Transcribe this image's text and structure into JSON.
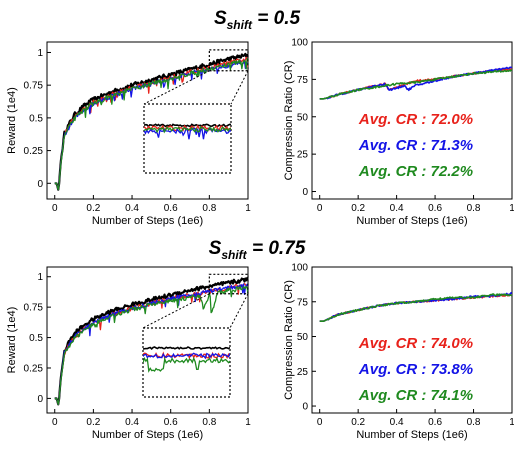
{
  "chart_data": [
    {
      "title_main": "S",
      "title_sub": "shift",
      "title_value": "= 0.5",
      "panels": [
        {
          "type": "line",
          "xlabel": "Number of Steps (1e6)",
          "ylabel": "Reward (1e4)",
          "xlim": [
            -0.04,
            1.0
          ],
          "ylim": [
            -0.12,
            1.08
          ],
          "xticks": [
            "0",
            "0.2",
            "0.4",
            "0.6",
            "0.8",
            "1"
          ],
          "yticks": [
            "0",
            "0.25",
            "0.5",
            "0.75",
            "1"
          ],
          "inset_zoom": true,
          "series": [
            {
              "color": "#000000",
              "x": [
                0,
                0.01,
                0.02,
                0.03,
                0.05,
                0.07,
                0.1,
                0.15,
                0.2,
                0.3,
                0.4,
                0.5,
                0.6,
                0.7,
                0.8,
                0.9,
                1.0
              ],
              "y": [
                0,
                0.0,
                -0.06,
                0.15,
                0.38,
                0.44,
                0.52,
                0.59,
                0.64,
                0.7,
                0.75,
                0.79,
                0.83,
                0.87,
                0.91,
                0.95,
                0.98
              ]
            },
            {
              "color": "#e8221b",
              "x": [
                0,
                0.01,
                0.02,
                0.03,
                0.05,
                0.07,
                0.1,
                0.15,
                0.2,
                0.3,
                0.4,
                0.5,
                0.6,
                0.7,
                0.8,
                0.9,
                1.0
              ],
              "y": [
                0,
                0.0,
                -0.06,
                0.14,
                0.37,
                0.43,
                0.5,
                0.57,
                0.62,
                0.68,
                0.73,
                0.77,
                0.81,
                0.85,
                0.88,
                0.92,
                0.95
              ]
            },
            {
              "color": "#1414e6",
              "x": [
                0,
                0.01,
                0.02,
                0.03,
                0.05,
                0.07,
                0.1,
                0.15,
                0.2,
                0.3,
                0.4,
                0.5,
                0.6,
                0.7,
                0.8,
                0.9,
                1.0
              ],
              "y": [
                0,
                0.0,
                -0.06,
                0.14,
                0.36,
                0.42,
                0.49,
                0.56,
                0.61,
                0.67,
                0.72,
                0.76,
                0.8,
                0.84,
                0.87,
                0.9,
                0.93
              ]
            },
            {
              "color": "#1f8a1f",
              "x": [
                0,
                0.01,
                0.02,
                0.03,
                0.05,
                0.07,
                0.1,
                0.15,
                0.2,
                0.3,
                0.4,
                0.5,
                0.6,
                0.7,
                0.8,
                0.9,
                1.0
              ],
              "y": [
                0,
                0.0,
                -0.06,
                0.13,
                0.36,
                0.42,
                0.49,
                0.56,
                0.61,
                0.67,
                0.72,
                0.76,
                0.8,
                0.84,
                0.87,
                0.91,
                0.94
              ]
            }
          ]
        },
        {
          "type": "line",
          "xlabel": "Number of Steps (1e6)",
          "ylabel": "Compression Ratio (CR)",
          "xlim": [
            -0.04,
            1.0
          ],
          "ylim": [
            -5,
            100
          ],
          "xticks": [
            "0",
            "0.2",
            "0.4",
            "0.6",
            "0.8",
            "1"
          ],
          "yticks": [
            "0",
            "25",
            "50",
            "75",
            "100"
          ],
          "series": [
            {
              "name": "Avg. CR : 72.0%",
              "color": "#e8221b",
              "x": [
                0,
                0.02,
                0.05,
                0.1,
                0.2,
                0.3,
                0.34,
                0.36,
                0.4,
                0.45,
                0.5,
                0.6,
                0.7,
                0.8,
                0.9,
                1.0
              ],
              "y": [
                62,
                62,
                63,
                65,
                68,
                71,
                72,
                68,
                70,
                72,
                74,
                75,
                77,
                79,
                81,
                82
              ]
            },
            {
              "name": "Avg. CR : 71.3%",
              "color": "#1414e6",
              "x": [
                0,
                0.02,
                0.05,
                0.1,
                0.2,
                0.3,
                0.34,
                0.36,
                0.4,
                0.44,
                0.46,
                0.5,
                0.6,
                0.7,
                0.8,
                0.9,
                1.0
              ],
              "y": [
                62,
                62,
                63,
                65,
                68,
                71,
                72,
                68,
                69,
                71,
                68,
                71,
                74,
                77,
                79,
                81,
                83
              ]
            },
            {
              "name": "Avg. CR : 72.2%",
              "color": "#1f8a1f",
              "x": [
                0,
                0.02,
                0.05,
                0.1,
                0.2,
                0.3,
                0.35,
                0.4,
                0.5,
                0.6,
                0.7,
                0.8,
                0.9,
                1.0
              ],
              "y": [
                62,
                62,
                63,
                65,
                68,
                70,
                71,
                72,
                73,
                75,
                77,
                79,
                80,
                81
              ]
            }
          ]
        }
      ]
    },
    {
      "title_main": "S",
      "title_sub": "shift",
      "title_value": "= 0.75",
      "panels": [
        {
          "type": "line",
          "xlabel": "Number of Steps (1e6)",
          "ylabel": "Reward (1e4)",
          "xlim": [
            -0.04,
            1.0
          ],
          "ylim": [
            -0.12,
            1.08
          ],
          "xticks": [
            "0",
            "0.2",
            "0.4",
            "0.6",
            "0.8",
            "1"
          ],
          "yticks": [
            "0",
            "0.25",
            "0.5",
            "0.75",
            "1"
          ],
          "inset_zoom": true,
          "series": [
            {
              "color": "#000000",
              "x": [
                0,
                0.01,
                0.02,
                0.03,
                0.05,
                0.07,
                0.1,
                0.15,
                0.2,
                0.3,
                0.4,
                0.5,
                0.6,
                0.7,
                0.8,
                0.9,
                1.0
              ],
              "y": [
                0,
                0.0,
                -0.06,
                0.15,
                0.39,
                0.45,
                0.53,
                0.6,
                0.65,
                0.72,
                0.77,
                0.81,
                0.85,
                0.89,
                0.92,
                0.95,
                0.98
              ]
            },
            {
              "color": "#e8221b",
              "x": [
                0,
                0.01,
                0.02,
                0.03,
                0.05,
                0.07,
                0.1,
                0.15,
                0.2,
                0.3,
                0.4,
                0.5,
                0.6,
                0.7,
                0.8,
                0.9,
                1.0
              ],
              "y": [
                0,
                0.0,
                -0.06,
                0.14,
                0.37,
                0.43,
                0.5,
                0.57,
                0.62,
                0.69,
                0.74,
                0.78,
                0.82,
                0.85,
                0.88,
                0.91,
                0.94
              ]
            },
            {
              "color": "#1414e6",
              "x": [
                0,
                0.01,
                0.02,
                0.03,
                0.05,
                0.07,
                0.1,
                0.15,
                0.2,
                0.3,
                0.4,
                0.5,
                0.6,
                0.7,
                0.8,
                0.9,
                1.0
              ],
              "y": [
                0,
                0.0,
                -0.06,
                0.14,
                0.37,
                0.43,
                0.5,
                0.57,
                0.62,
                0.69,
                0.74,
                0.78,
                0.82,
                0.85,
                0.88,
                0.91,
                0.93
              ]
            },
            {
              "color": "#1f8a1f",
              "x": [
                0,
                0.01,
                0.02,
                0.03,
                0.05,
                0.07,
                0.1,
                0.15,
                0.2,
                0.3,
                0.4,
                0.5,
                0.6,
                0.7,
                0.75,
                0.77,
                0.8,
                0.82,
                0.84,
                0.9,
                1.0
              ],
              "y": [
                0,
                0.0,
                -0.06,
                0.13,
                0.36,
                0.42,
                0.49,
                0.56,
                0.61,
                0.68,
                0.73,
                0.77,
                0.8,
                0.83,
                0.84,
                0.74,
                0.85,
                0.72,
                0.86,
                0.89,
                0.92
              ]
            }
          ]
        },
        {
          "type": "line",
          "xlabel": "Number of Steps (1e6)",
          "ylabel": "Compression Ratio (CR)",
          "xlim": [
            -0.04,
            1.0
          ],
          "ylim": [
            -5,
            100
          ],
          "xticks": [
            "0",
            "0.2",
            "0.4",
            "0.6",
            "0.8",
            "1"
          ],
          "yticks": [
            "0",
            "25",
            "50",
            "75",
            "100"
          ],
          "series": [
            {
              "name": "Avg. CR : 74.0%",
              "color": "#e8221b",
              "x": [
                0,
                0.02,
                0.05,
                0.1,
                0.2,
                0.3,
                0.4,
                0.5,
                0.6,
                0.7,
                0.8,
                0.9,
                1.0
              ],
              "y": [
                61,
                61,
                63,
                66,
                69,
                72,
                74,
                75,
                76,
                77,
                78,
                79,
                80
              ]
            },
            {
              "name": "Avg. CR : 73.8%",
              "color": "#1414e6",
              "x": [
                0,
                0.02,
                0.05,
                0.1,
                0.2,
                0.3,
                0.4,
                0.5,
                0.6,
                0.7,
                0.8,
                0.9,
                1.0
              ],
              "y": [
                61,
                61,
                63,
                66,
                69,
                72,
                74,
                75,
                76,
                77,
                79,
                79,
                81
              ]
            },
            {
              "name": "Avg. CR : 74.1%",
              "color": "#1f8a1f",
              "x": [
                0,
                0.02,
                0.05,
                0.1,
                0.2,
                0.3,
                0.4,
                0.5,
                0.6,
                0.7,
                0.8,
                0.9,
                1.0
              ],
              "y": [
                61,
                61,
                63,
                66,
                69,
                72,
                74,
                75,
                77,
                78,
                78,
                80,
                80
              ]
            }
          ]
        }
      ]
    }
  ]
}
